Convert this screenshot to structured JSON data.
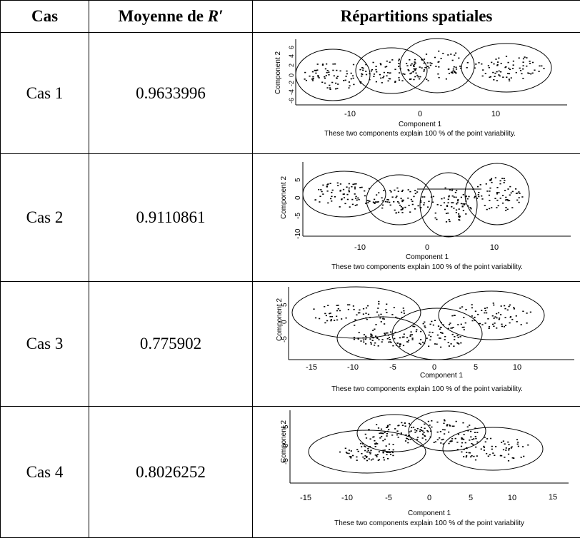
{
  "table": {
    "headers": {
      "cas": "Cas",
      "moyenne_prefix": "Moyenne de ",
      "moyenne_var": "R′",
      "repartitions": "Répartitions spatiales"
    },
    "rows": [
      {
        "cas": "Cas 1",
        "moyenne": "0.9633996",
        "plot": {
          "ylabel": "Component 2",
          "xlabel": "Component 1",
          "caption": "These two components explain 100 % of the point variability.",
          "yticks": [
            "-6",
            "-4",
            "-2",
            "0",
            "2",
            "4",
            "6"
          ],
          "xticks": [
            "-10",
            "0",
            "10"
          ]
        }
      },
      {
        "cas": "Cas 2",
        "moyenne": "0.9110861",
        "plot": {
          "ylabel": "Component 2",
          "xlabel": "Component 1",
          "caption": "These two components explain 100 % of the point variability.",
          "yticks": [
            "5",
            "0",
            "-5",
            "-10"
          ],
          "xticks": [
            "-10",
            "0",
            "10"
          ]
        }
      },
      {
        "cas": "Cas 3",
        "moyenne": "0.775902",
        "plot": {
          "ylabel": "Component 2",
          "xlabel": "Component 1",
          "caption": "These two components explain 100 % of the point variability.",
          "yticks": [
            "5",
            "0",
            "-5"
          ],
          "xticks": [
            "-15",
            "-10",
            "-5",
            "0",
            "5",
            "10"
          ]
        }
      },
      {
        "cas": "Cas 4",
        "moyenne": "0.8026252",
        "plot": {
          "ylabel": "Component 2",
          "xlabel": "Component 1",
          "caption": "These two components explain 100 % of the point variability",
          "yticks": [
            "5",
            "0",
            "-5"
          ],
          "xticks": [
            "-15",
            "-10",
            "-5",
            "0",
            "5",
            "10",
            "15"
          ]
        }
      }
    ]
  }
}
